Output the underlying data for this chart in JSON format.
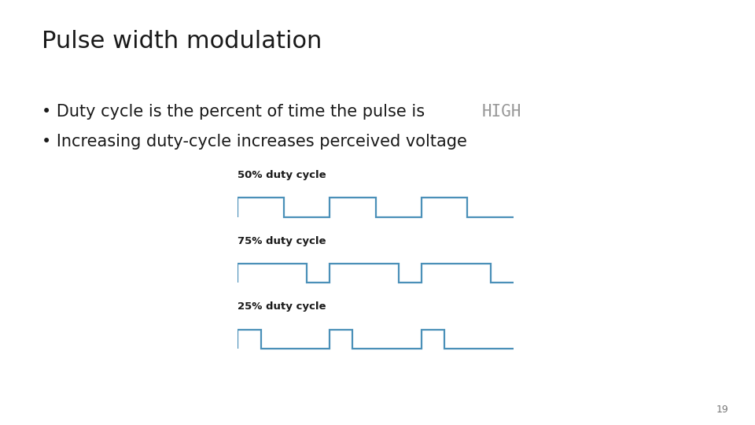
{
  "title": "Pulse width modulation",
  "bullet1_normal": "Duty cycle is the percent of time the pulse is ",
  "bullet1_code": "HIGH",
  "bullet2": "Increasing duty-cycle increases perceived voltage",
  "page_number": "19",
  "bg_color": "#ffffff",
  "text_color": "#1a1a1a",
  "code_color": "#999999",
  "pwm_color": "#4a90b8",
  "pwm_labels": [
    "50% duty cycle",
    "75% duty cycle",
    "25% duty cycle"
  ],
  "pwm_duties": [
    0.5,
    0.75,
    0.25
  ],
  "title_fontsize": 22,
  "bullet_fontsize": 15,
  "label_fontsize": 9.5
}
